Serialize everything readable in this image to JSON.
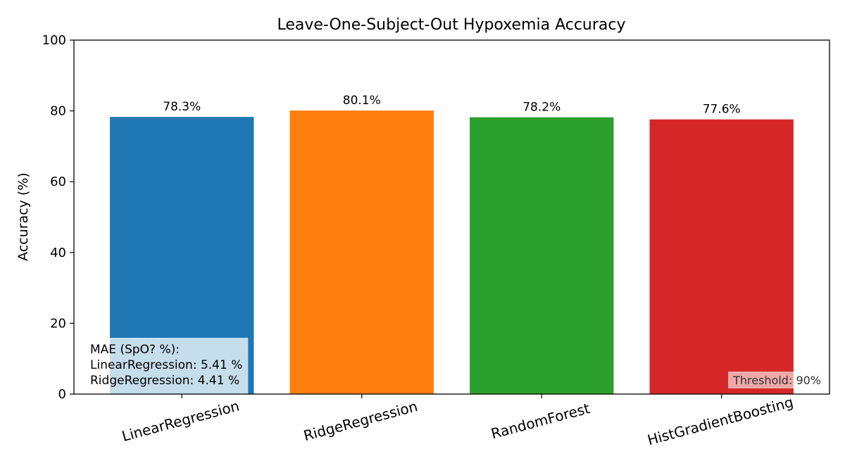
{
  "chart_data": {
    "type": "bar",
    "title": "Leave-One-Subject-Out Hypoxemia Accuracy",
    "xlabel": "",
    "ylabel": "Accuracy (%)",
    "ylim": [
      0,
      100
    ],
    "yticks": [
      0,
      20,
      40,
      60,
      80,
      100
    ],
    "categories": [
      "LinearRegression",
      "RidgeRegression",
      "RandomForest",
      "HistGradientBoosting"
    ],
    "values": [
      78.3,
      80.1,
      78.2,
      77.6
    ],
    "data_labels": [
      "78.3%",
      "80.1%",
      "78.2%",
      "77.6%"
    ],
    "colors": [
      "#1f77b4",
      "#ff7f0e",
      "#2ca02c",
      "#d62728"
    ],
    "grid": false,
    "annotations": {
      "mae_box": {
        "lines": [
          "MAE (SpO? %):",
          "LinearRegression: 5.41 %",
          "RidgeRegression: 4.41 %"
        ],
        "placement": "bottom-left"
      },
      "threshold": {
        "text": "Threshold: 90%",
        "placement": "bottom-right"
      }
    }
  }
}
